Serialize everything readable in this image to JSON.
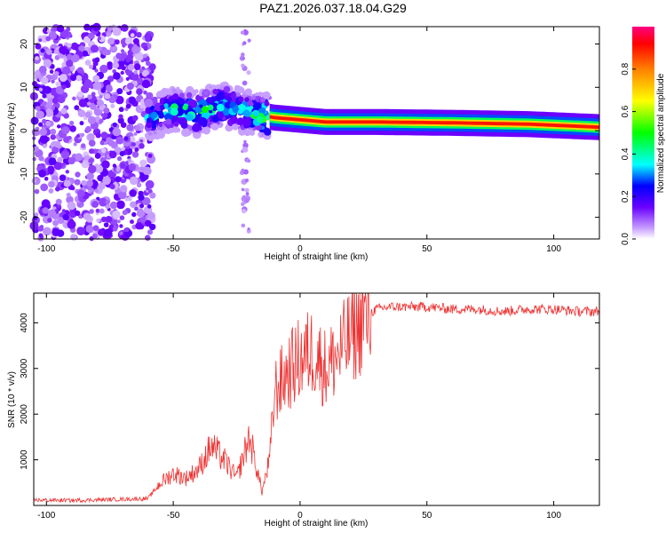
{
  "title": "PAZ1.2026.037.18.04.G29",
  "chart_data": [
    {
      "type": "heatmap",
      "name": "spectrogram",
      "xlabel": "Height of straight line (km)",
      "ylabel": "Frequency (Hz)",
      "xlim": [
        -105,
        118
      ],
      "ylim": [
        -25,
        24
      ],
      "xticks": [
        -100,
        -50,
        0,
        50,
        100
      ],
      "yticks": [
        -20,
        -10,
        0,
        10,
        20
      ],
      "colorbar": {
        "label": "Normalized spectral amplitude",
        "range": [
          0,
          1
        ],
        "ticks": [
          "0.0",
          "0.2",
          "0.4",
          "0.6",
          "0.8"
        ],
        "tick_values": [
          0,
          0.2,
          0.4,
          0.6,
          0.8
        ]
      },
      "ridge": [
        {
          "h": -60,
          "f": 3,
          "a": 0.4
        },
        {
          "h": -50,
          "f": 5,
          "a": 0.5
        },
        {
          "h": -40,
          "f": 4,
          "a": 0.6
        },
        {
          "h": -30,
          "f": 6,
          "a": 0.5
        },
        {
          "h": -20,
          "f": 4,
          "a": 0.5
        },
        {
          "h": -10,
          "f": 3,
          "a": 0.9
        },
        {
          "h": 0,
          "f": 2.5,
          "a": 0.9
        },
        {
          "h": 10,
          "f": 2,
          "a": 1.0
        },
        {
          "h": 30,
          "f": 2,
          "a": 1.0
        },
        {
          "h": 60,
          "f": 1.8,
          "a": 1.0
        },
        {
          "h": 90,
          "f": 1.5,
          "a": 1.0
        },
        {
          "h": 118,
          "f": 0.8,
          "a": 1.0
        }
      ]
    },
    {
      "type": "line",
      "name": "snr",
      "xlabel": "Height of straight line (km)",
      "ylabel": "SNR (10 * v/v)",
      "xlim": [
        -105,
        118
      ],
      "ylim": [
        0,
        4650
      ],
      "xticks": [
        -100,
        -50,
        0,
        50,
        100
      ],
      "yticks": [
        1000,
        2000,
        3000,
        4000
      ],
      "color": "#ee3333",
      "series": [
        {
          "name": "SNR",
          "x": [
            -105,
            -90,
            -75,
            -60,
            -55,
            -50,
            -45,
            -40,
            -35,
            -30,
            -25,
            -20,
            -17,
            -15,
            -12,
            -10,
            -5,
            0,
            5,
            10,
            15,
            20,
            25,
            30,
            35,
            40,
            50,
            60,
            70,
            80,
            90,
            100,
            110,
            118
          ],
          "y": [
            120,
            110,
            130,
            150,
            500,
            700,
            600,
            800,
            1300,
            1000,
            600,
            1500,
            800,
            300,
            1000,
            2500,
            2900,
            3200,
            3400,
            3000,
            3300,
            3700,
            4100,
            4300,
            4350,
            4350,
            4350,
            4300,
            4300,
            4250,
            4300,
            4300,
            4250,
            4250
          ]
        }
      ]
    }
  ]
}
